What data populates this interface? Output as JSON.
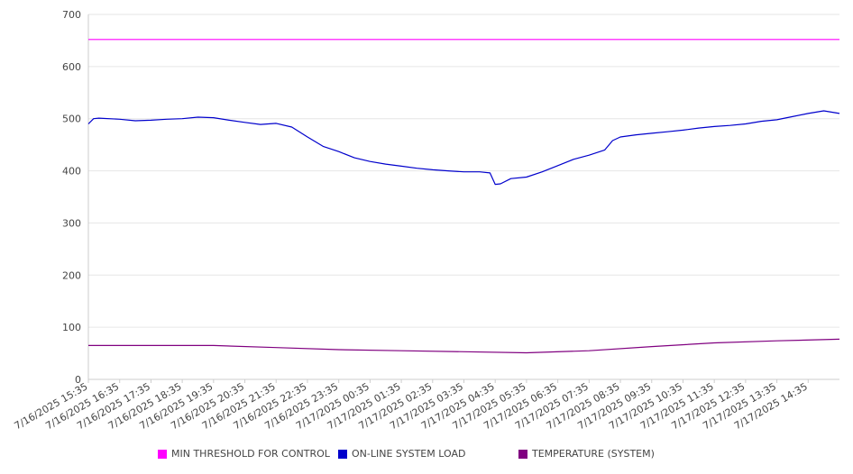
{
  "chart_data": {
    "type": "line",
    "title": "",
    "xlabel": "",
    "ylabel": "",
    "ylim": [
      0,
      700
    ],
    "yticks": [
      0,
      100,
      200,
      300,
      400,
      500,
      600,
      700
    ],
    "xticks": [
      "7/16/2025 15:35",
      "7/16/2025 16:35",
      "7/16/2025 17:35",
      "7/16/2025 18:35",
      "7/16/2025 19:35",
      "7/16/2025 20:35",
      "7/16/2025 21:35",
      "7/16/2025 22:35",
      "7/16/2025 23:35",
      "7/17/2025 00:35",
      "7/17/2025 01:35",
      "7/17/2025 02:35",
      "7/17/2025 03:35",
      "7/17/2025 04:35",
      "7/17/2025 05:35",
      "7/17/2025 06:35",
      "7/17/2025 07:35",
      "7/17/2025 08:35",
      "7/17/2025 09:35",
      "7/17/2025 10:35",
      "7/17/2025 11:35",
      "7/17/2025 12:35",
      "7/17/2025 13:35",
      "7/17/2025 14:35"
    ],
    "x_range": [
      "7/16/2025 15:35",
      "7/17/2025 15:35"
    ],
    "grid": true,
    "legend_position": "bottom",
    "series": [
      {
        "name": "MIN THRESHOLD FOR CONTROL",
        "color": "#ff00ff",
        "x": [
          "7/16/2025 15:35",
          "7/17/2025 15:35"
        ],
        "y": [
          652,
          652
        ]
      },
      {
        "name": "ON-LINE SYSTEM LOAD",
        "color": "#0000cc",
        "x": [
          "7/16/2025 15:35",
          "7/16/2025 15:45",
          "7/16/2025 15:55",
          "7/16/2025 16:35",
          "7/16/2025 17:05",
          "7/16/2025 17:35",
          "7/16/2025 18:05",
          "7/16/2025 18:35",
          "7/16/2025 19:05",
          "7/16/2025 19:35",
          "7/16/2025 20:05",
          "7/16/2025 20:35",
          "7/16/2025 21:05",
          "7/16/2025 21:35",
          "7/16/2025 22:05",
          "7/16/2025 22:35",
          "7/16/2025 23:05",
          "7/16/2025 23:35",
          "7/17/2025 00:05",
          "7/17/2025 00:35",
          "7/17/2025 01:05",
          "7/17/2025 01:35",
          "7/17/2025 02:05",
          "7/17/2025 02:35",
          "7/17/2025 03:05",
          "7/17/2025 03:35",
          "7/17/2025 04:05",
          "7/17/2025 04:25",
          "7/17/2025 04:35",
          "7/17/2025 04:45",
          "7/17/2025 05:05",
          "7/17/2025 05:35",
          "7/17/2025 06:05",
          "7/17/2025 06:35",
          "7/17/2025 07:05",
          "7/17/2025 07:35",
          "7/17/2025 08:05",
          "7/17/2025 08:20",
          "7/17/2025 08:35",
          "7/17/2025 09:05",
          "7/17/2025 09:35",
          "7/17/2025 10:05",
          "7/17/2025 10:35",
          "7/17/2025 11:05",
          "7/17/2025 11:35",
          "7/17/2025 12:05",
          "7/17/2025 12:35",
          "7/17/2025 13:05",
          "7/17/2025 13:35",
          "7/17/2025 14:05",
          "7/17/2025 14:35",
          "7/17/2025 15:05",
          "7/17/2025 15:35"
        ],
        "y": [
          490,
          500,
          501,
          499,
          496,
          497,
          499,
          500,
          503,
          502,
          497,
          493,
          489,
          491,
          484,
          465,
          447,
          437,
          425,
          418,
          413,
          409,
          405,
          402,
          400,
          398,
          398,
          396,
          374,
          375,
          385,
          388,
          398,
          410,
          422,
          430,
          440,
          458,
          465,
          469,
          472,
          475,
          478,
          482,
          485,
          487,
          490,
          495,
          498,
          504,
          510,
          515,
          510
        ]
      },
      {
        "name": "TEMPERATURE (SYSTEM)",
        "color": "#800080",
        "x": [
          "7/16/2025 15:35",
          "7/16/2025 19:35",
          "7/16/2025 21:35",
          "7/16/2025 23:35",
          "7/17/2025 01:35",
          "7/17/2025 03:35",
          "7/17/2025 05:35",
          "7/17/2025 07:35",
          "7/17/2025 09:35",
          "7/17/2025 11:35",
          "7/17/2025 13:35",
          "7/17/2025 15:35"
        ],
        "y": [
          65,
          65,
          61,
          57,
          55,
          53,
          51,
          55,
          63,
          70,
          74,
          77
        ]
      }
    ]
  }
}
